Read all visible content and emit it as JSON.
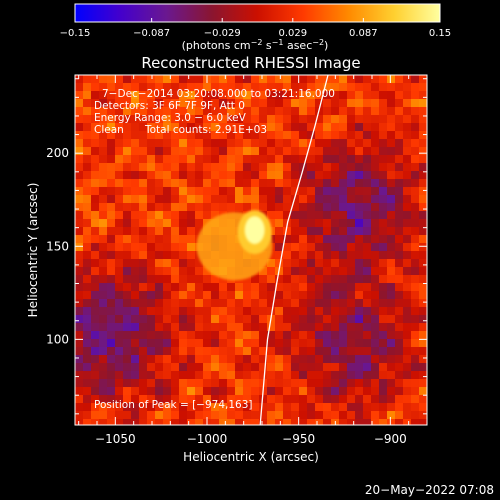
{
  "chart_data": {
    "type": "heatmap",
    "title": "Reconstructed RHESSI Image",
    "xlabel": "Heliocentric X (arcsec)",
    "ylabel": "Heliocentric Y (arcsec)",
    "xlim": [
      -1072,
      -880
    ],
    "ylim": [
      54,
      242
    ],
    "x_ticks": [
      {
        "value": -1050,
        "label": "−1050"
      },
      {
        "value": -1000,
        "label": "−1000"
      },
      {
        "value": -950,
        "label": "−950"
      },
      {
        "value": -900,
        "label": "−900"
      }
    ],
    "y_ticks": [
      {
        "value": 100,
        "label": "100"
      },
      {
        "value": 150,
        "label": "150"
      },
      {
        "value": 200,
        "label": "200"
      }
    ],
    "colorbar": {
      "range": [
        -0.15,
        0.15
      ],
      "ticks": [
        {
          "value": -0.15,
          "label": "−0.15"
        },
        {
          "value": -0.087,
          "label": "−0.087"
        },
        {
          "value": -0.029,
          "label": "−0.029"
        },
        {
          "value": 0.029,
          "label": "0.029"
        },
        {
          "value": 0.087,
          "label": "0.087"
        },
        {
          "value": 0.15,
          "label": "0.15"
        }
      ],
      "unit_parts": [
        "(photons cm",
        "−2",
        " s",
        "−1",
        " asec",
        "−2",
        ")"
      ],
      "colors": [
        "#0000ff",
        "#4400cc",
        "#6a1890",
        "#8a1530",
        "#cc1000",
        "#ff3a00",
        "#ff8a00",
        "#ffd030",
        "#ffffa0"
      ]
    },
    "annotations": [
      "7−Dec−2014 03:20:08.000 to 03:21:16.000",
      "Detectors: 3F 6F 7F 9F, Att 0",
      "Energy Range: 3.0 − 6.0 keV",
      "Clean",
      "Total counts: 2.91E+03",
      "Position of Peak = [−974,163]"
    ],
    "peak": {
      "x": -974,
      "y": 163,
      "value": 0.15
    },
    "hot_region": {
      "x": -985,
      "y": 150,
      "value": 0.09
    },
    "limb_curve": [
      {
        "x": -934,
        "y": 242
      },
      {
        "x": -941,
        "y": 215
      },
      {
        "x": -948,
        "y": 190
      },
      {
        "x": -956,
        "y": 163
      },
      {
        "x": -962,
        "y": 130
      },
      {
        "x": -967,
        "y": 100
      },
      {
        "x": -971,
        "y": 54
      }
    ],
    "negative_regions": [
      {
        "x": -1055,
        "y": 105,
        "value": -0.04
      },
      {
        "x": -920,
        "y": 175,
        "value": -0.03
      },
      {
        "x": -925,
        "y": 100,
        "value": -0.02
      }
    ],
    "footer_date": "20−May−2022 07:08"
  }
}
